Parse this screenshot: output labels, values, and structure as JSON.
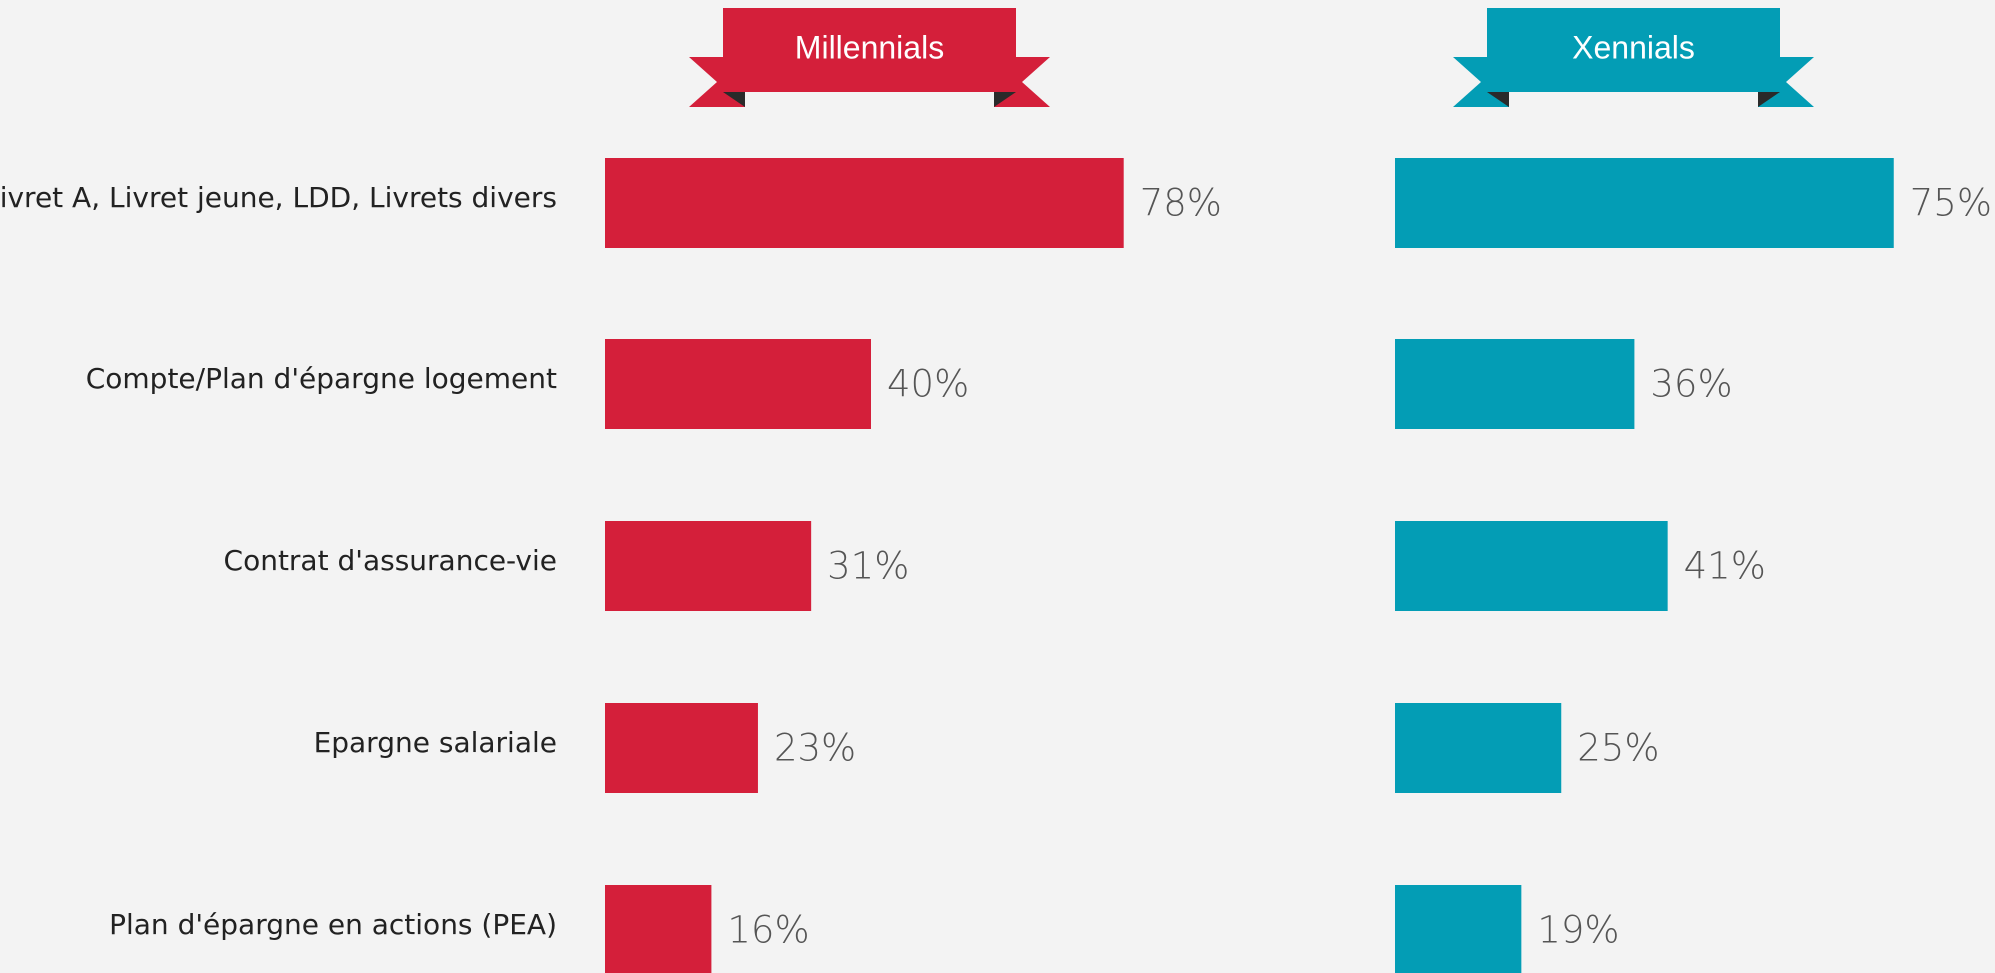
{
  "chart_data": {
    "type": "bar",
    "categories": [
      "Livret A, Livret jeune, LDD, Livrets divers",
      "Compte/Plan d'épargne logement",
      "Contrat d'assurance-vie",
      "Epargne salariale",
      "Plan d'épargne en actions (PEA)"
    ],
    "series": [
      {
        "name": "Millennials",
        "color": "#d41f3a",
        "values": [
          78,
          40,
          31,
          23,
          16
        ],
        "value_labels": [
          "78%",
          "40%",
          "31%",
          "23%",
          "16%"
        ]
      },
      {
        "name": "Xennials",
        "color": "#039db5",
        "values": [
          75,
          36,
          41,
          25,
          19
        ],
        "value_labels": [
          "75%",
          "36%",
          "41%",
          "25%",
          "19%"
        ]
      }
    ]
  }
}
